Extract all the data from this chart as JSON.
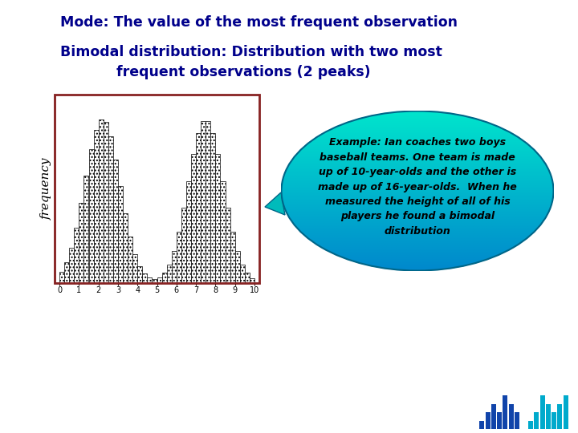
{
  "title1": "Mode: The value of the most frequent observation",
  "title2_line1": "Bimodal distribution: Distribution with two most",
  "title2_line2": "frequent observations (2 peaks)",
  "title_color": "#00008B",
  "background_color": "#FFFFFF",
  "bubble_text_lines": [
    "Example: Ian coaches two boys",
    "baseball teams. One team is made",
    "up of 10-year-olds and the other is",
    "made up of 16-year-olds.  When he",
    "measured the height of all of his",
    "players he found a bimodal",
    "distribution"
  ],
  "histogram_ylabel": "frequency",
  "hist_pattern_color": "#222222",
  "box_border_color": "#882222",
  "bubble_color_top": "#00E5CC",
  "bubble_color_bottom": "#0088CC",
  "icon_colors_left": [
    "#1144AA",
    "#1144AA",
    "#1144AA",
    "#1144AA",
    "#1144AA",
    "#1144AA",
    "#1144AA"
  ],
  "icon_colors_right": [
    "#00AACC",
    "#00AACC",
    "#00AACC",
    "#00AACC",
    "#00AACC",
    "#00AACC",
    "#00AACC"
  ]
}
